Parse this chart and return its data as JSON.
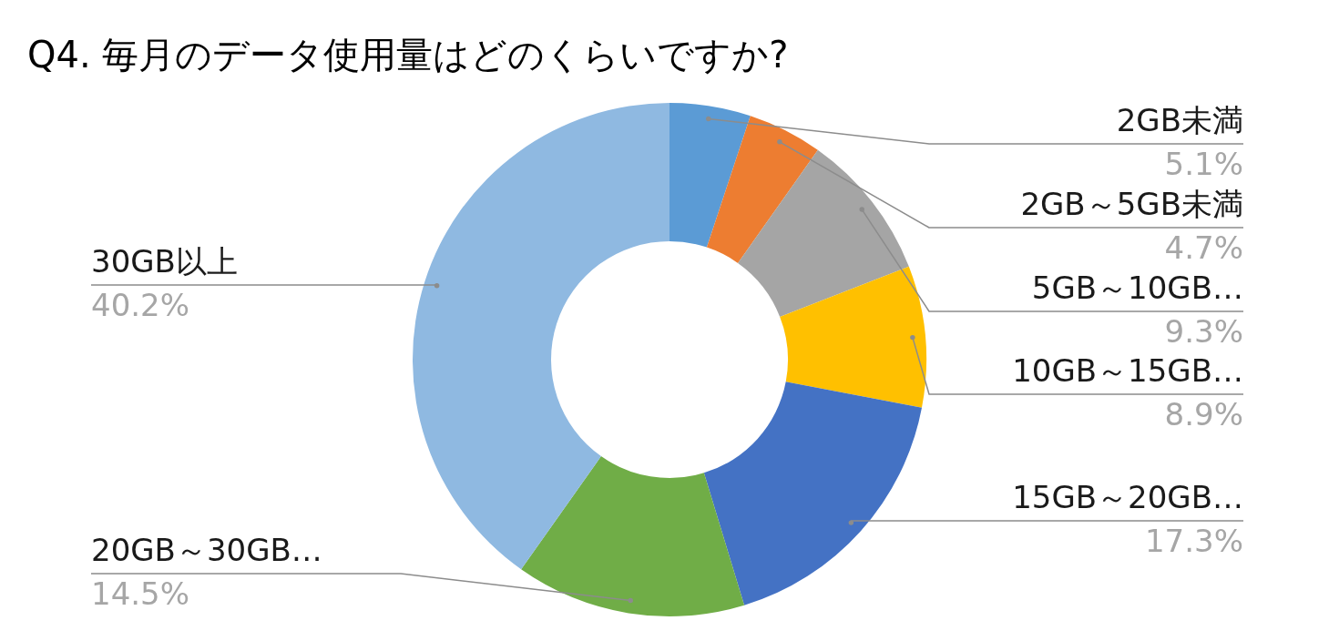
{
  "chart_data": {
    "type": "donut",
    "title": "Q4. 毎月のデータ使用量はどのくらいですか?",
    "categories": [
      "2GB未満",
      "2GB～5GB未満",
      "5GB～10GB…",
      "10GB～15GB…",
      "15GB～20GB…",
      "20GB～30GB…",
      "30GB以上"
    ],
    "values": [
      5.1,
      4.7,
      9.3,
      8.9,
      17.3,
      14.5,
      40.2
    ],
    "value_labels": [
      "5.1%",
      "4.7%",
      "9.3%",
      "8.9%",
      "17.3%",
      "14.5%",
      "40.2%"
    ],
    "colors": [
      "#5b9bd5",
      "#ed7d31",
      "#a5a5a5",
      "#ffc000",
      "#4472c4",
      "#70ad47",
      "#8fb9e1"
    ]
  }
}
